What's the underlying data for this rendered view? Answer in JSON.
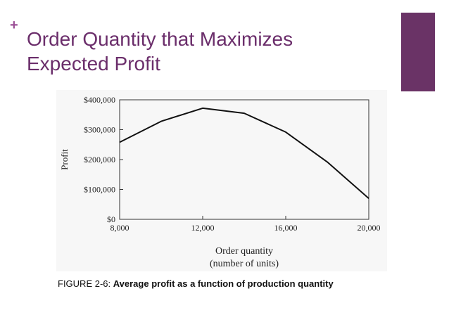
{
  "slide": {
    "plus": "+",
    "title_line1": "Order Quantity that Maximizes",
    "title_line2": "Expected Profit",
    "caption_prefix": "FIGURE 2-6: ",
    "caption_bold": "Average profit as a function of production quantity"
  },
  "colors": {
    "title": "#6b2e6b",
    "plus": "#9b4f96",
    "accent_block": "#6a3366",
    "line": "#111111"
  },
  "chart_data": {
    "type": "line",
    "title": "",
    "xlabel_line1": "Order quantity",
    "xlabel_line2": "(number of units)",
    "ylabel": "Profit",
    "xlim": [
      8000,
      20000
    ],
    "ylim": [
      0,
      400000
    ],
    "xticks": [
      8000,
      12000,
      16000,
      20000
    ],
    "xtick_labels": [
      "8,000",
      "12,000",
      "16,000",
      "20,000"
    ],
    "yticks": [
      0,
      100000,
      200000,
      300000,
      400000
    ],
    "ytick_labels": [
      "$0",
      "$100,000",
      "$200,000",
      "$300,000",
      "$400,000"
    ],
    "grid": false,
    "series": [
      {
        "x": [
          8000,
          10000,
          12000,
          14000,
          16000,
          18000,
          20000
        ],
        "y": [
          258000,
          328000,
          372000,
          355000,
          292000,
          192000,
          70000
        ]
      }
    ]
  }
}
